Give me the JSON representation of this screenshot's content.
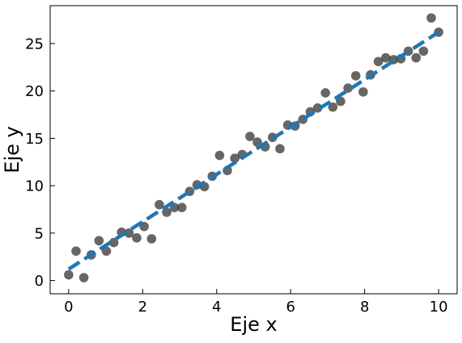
{
  "chart_data": {
    "type": "scatter",
    "title": "",
    "xlabel": "Eje x",
    "ylabel": "Eje y",
    "xlim": [
      -0.5,
      10.5
    ],
    "ylim": [
      -1.4,
      29.0
    ],
    "xticks": [
      0,
      2,
      4,
      6,
      8,
      10
    ],
    "yticks": [
      0,
      5,
      10,
      15,
      20,
      25
    ],
    "xtick_labels": [
      "0",
      "2",
      "4",
      "6",
      "8",
      "10"
    ],
    "ytick_labels": [
      "0",
      "5",
      "10",
      "15",
      "20",
      "25"
    ],
    "grid": false,
    "ticks_direction": "in",
    "series": [
      {
        "type": "scatter",
        "color": "#404040",
        "x": [
          0.0,
          0.2,
          0.41,
          0.61,
          0.82,
          1.02,
          1.22,
          1.43,
          1.63,
          1.84,
          2.04,
          2.24,
          2.45,
          2.65,
          2.86,
          3.06,
          3.27,
          3.47,
          3.67,
          3.88,
          4.08,
          4.29,
          4.49,
          4.69,
          4.9,
          5.1,
          5.31,
          5.51,
          5.71,
          5.92,
          6.12,
          6.33,
          6.53,
          6.73,
          6.94,
          7.14,
          7.35,
          7.55,
          7.76,
          7.96,
          8.16,
          8.37,
          8.57,
          8.78,
          8.98,
          9.18,
          9.39,
          9.59,
          9.8,
          10.0
        ],
        "y": [
          0.6,
          3.1,
          0.3,
          2.7,
          4.2,
          3.1,
          4.0,
          5.1,
          5.0,
          4.5,
          5.7,
          4.4,
          8.0,
          7.2,
          7.7,
          7.7,
          9.4,
          10.1,
          9.9,
          11.0,
          13.2,
          11.6,
          12.9,
          13.3,
          15.2,
          14.6,
          14.1,
          15.1,
          13.9,
          16.4,
          16.3,
          17.0,
          17.8,
          18.2,
          19.8,
          18.3,
          18.9,
          20.3,
          21.6,
          19.9,
          21.7,
          23.1,
          23.5,
          23.3,
          23.4,
          24.2,
          23.5,
          24.2,
          27.7,
          26.2
        ]
      },
      {
        "type": "line",
        "style": "dashed",
        "color": "#1f77b4",
        "x": [
          0,
          10
        ],
        "y": [
          1.2,
          26.2
        ]
      }
    ]
  }
}
